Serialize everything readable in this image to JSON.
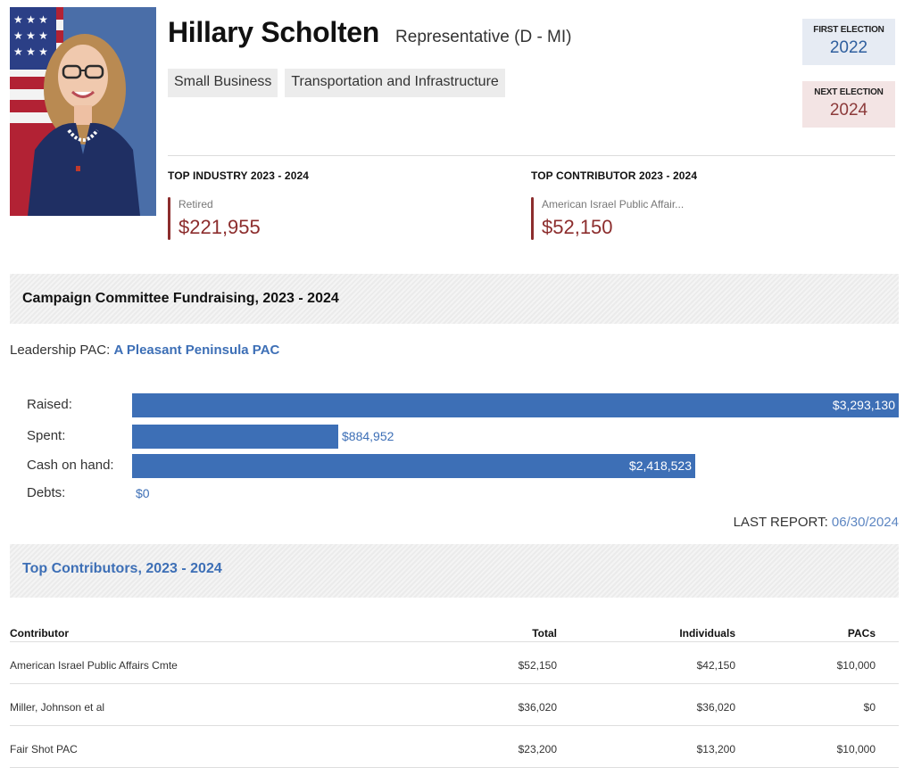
{
  "member": {
    "name": "Hillary Scholten",
    "role": "Representative (D - MI)",
    "committees": [
      "Small Business",
      "Transportation and Infrastructure"
    ],
    "first_election": {
      "label": "FIRST ELECTION",
      "value": "2022"
    },
    "next_election": {
      "label": "NEXT ELECTION",
      "value": "2024"
    }
  },
  "top_industry": {
    "label": "TOP INDUSTRY 2023 - 2024",
    "name": "Retired",
    "amount": "$221,955"
  },
  "top_contributor": {
    "label": "TOP CONTRIBUTOR 2023 - 2024",
    "name": "American Israel Public Affair...",
    "amount": "$52,150"
  },
  "fundraising": {
    "title": "Campaign Committee Fundraising, 2023 - 2024",
    "leadership_pac_label": "Leadership PAC:",
    "leadership_pac_name": "A Pleasant Peninsula PAC",
    "rows": [
      {
        "label": "Raised:",
        "value": "$3,293,130",
        "amount": 3293130
      },
      {
        "label": "Spent:",
        "value": "$884,952",
        "amount": 884952
      },
      {
        "label": "Cash on hand:",
        "value": "$2,418,523",
        "amount": 2418523
      },
      {
        "label": "Debts:",
        "value": "$0",
        "amount": 0
      }
    ],
    "last_report_label": "LAST REPORT:",
    "last_report_date": "06/30/2024"
  },
  "contributors": {
    "title": "Top Contributors, 2023 - 2024",
    "headers": [
      "Contributor",
      "Total",
      "Individuals",
      "PACs"
    ],
    "rows": [
      [
        "American Israel Public Affairs Cmte",
        "$52,150",
        "$42,150",
        "$10,000"
      ],
      [
        "Miller, Johnson et al",
        "$36,020",
        "$36,020",
        "$0"
      ],
      [
        "Fair Shot PAC",
        "$23,200",
        "$13,200",
        "$10,000"
      ]
    ]
  },
  "colors": {
    "accent_blue": "#3d6fb6",
    "accent_red": "#8c2d2d"
  }
}
